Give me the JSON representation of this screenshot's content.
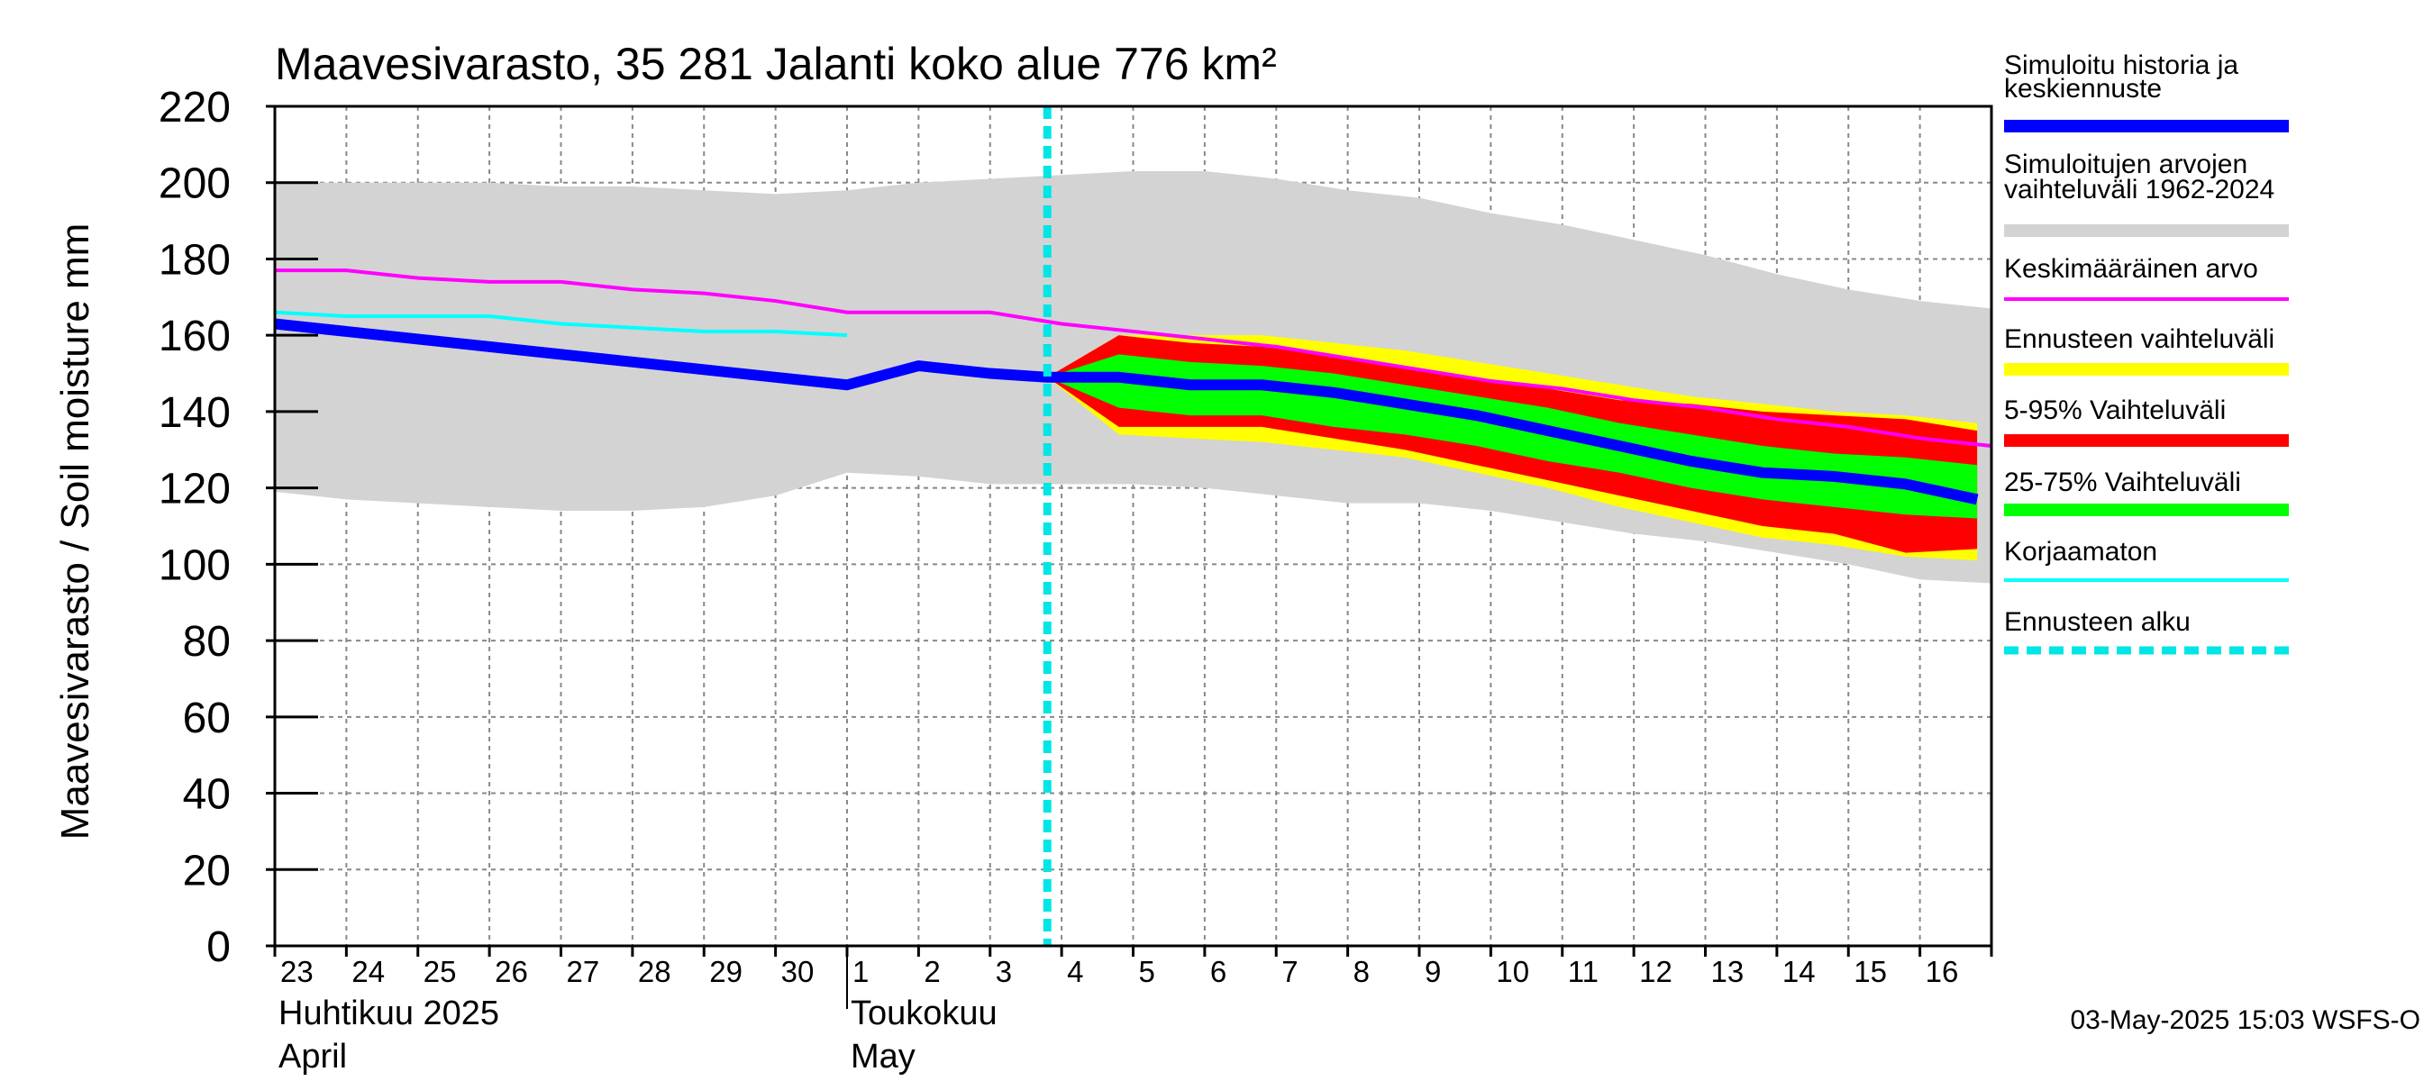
{
  "chart_data": {
    "type": "area",
    "title": "Maavesivarasto, 35 281 Jalanti koko alue 776 km²",
    "ylabel": "Maavesivarasto / Soil moisture   mm",
    "ylim": [
      0,
      220
    ],
    "yticks": [
      0,
      20,
      40,
      60,
      80,
      100,
      120,
      140,
      160,
      180,
      200,
      220
    ],
    "xlim": [
      0,
      24
    ],
    "grid": true,
    "x_tick_labels": [
      "23",
      "24",
      "25",
      "26",
      "27",
      "28",
      "29",
      "30",
      "1",
      "2",
      "3",
      "4",
      "5",
      "6",
      "7",
      "8",
      "9",
      "10",
      "11",
      "12",
      "13",
      "14",
      "15",
      "16"
    ],
    "months": [
      {
        "name": "Huhtikuu  2025",
        "name_en": "April",
        "day_index": 0
      },
      {
        "name": "Toukokuu",
        "name_en": "May",
        "day_index": 8
      }
    ],
    "month_boundary_day": 8,
    "forecast_start_day": 10.8,
    "colors": {
      "history_band": "#d3d3d3",
      "forecast_range": "#ffff00",
      "p5_95": "#ff0000",
      "p25_75": "#00ff00",
      "simulated": "#0000ff",
      "mean": "#ff00ff",
      "uncorrected": "#00ffff",
      "forecast_start": "#00e5e5"
    },
    "series": [
      {
        "key": "history_band",
        "name": "Simuloitujen arvojen vaihteluväli 1962-2024",
        "upper": [
          [
            0,
            200
          ],
          [
            1,
            200
          ],
          [
            2,
            200
          ],
          [
            3,
            200
          ],
          [
            4,
            199
          ],
          [
            5,
            199
          ],
          [
            6,
            198
          ],
          [
            7,
            197
          ],
          [
            8,
            198
          ],
          [
            9,
            200
          ],
          [
            10,
            201
          ],
          [
            11,
            202
          ],
          [
            12,
            203
          ],
          [
            13,
            203
          ],
          [
            14,
            201
          ],
          [
            15,
            198
          ],
          [
            16,
            196
          ],
          [
            17,
            192
          ],
          [
            18,
            189
          ],
          [
            19,
            185
          ],
          [
            20,
            181
          ],
          [
            21,
            176
          ],
          [
            22,
            172
          ],
          [
            23,
            169
          ],
          [
            24,
            167
          ]
        ],
        "lower": [
          [
            0,
            119
          ],
          [
            1,
            117
          ],
          [
            2,
            116
          ],
          [
            3,
            115
          ],
          [
            4,
            114
          ],
          [
            5,
            114
          ],
          [
            6,
            115
          ],
          [
            7,
            118
          ],
          [
            8,
            124
          ],
          [
            9,
            123
          ],
          [
            10,
            121
          ],
          [
            11,
            121
          ],
          [
            12,
            121
          ],
          [
            13,
            120
          ],
          [
            14,
            118
          ],
          [
            15,
            116
          ],
          [
            16,
            116
          ],
          [
            17,
            114
          ],
          [
            18,
            111
          ],
          [
            19,
            108
          ],
          [
            20,
            106
          ],
          [
            21,
            103
          ],
          [
            22,
            100
          ],
          [
            23,
            96
          ],
          [
            24,
            95
          ]
        ]
      },
      {
        "key": "forecast_range",
        "name": "Ennusteen vaihteluväli",
        "upper": [
          [
            10.8,
            149
          ],
          [
            11.8,
            160
          ],
          [
            12.8,
            160
          ],
          [
            13.8,
            160
          ],
          [
            14.8,
            158
          ],
          [
            15.8,
            156
          ],
          [
            16.8,
            153
          ],
          [
            17.8,
            150
          ],
          [
            18.8,
            147
          ],
          [
            19.8,
            144
          ],
          [
            20.8,
            142
          ],
          [
            21.8,
            140
          ],
          [
            22.8,
            139
          ],
          [
            23.8,
            137
          ]
        ],
        "lower": [
          [
            10.8,
            149
          ],
          [
            11.8,
            134
          ],
          [
            12.8,
            133
          ],
          [
            13.8,
            132
          ],
          [
            14.8,
            130
          ],
          [
            15.8,
            128
          ],
          [
            16.8,
            124
          ],
          [
            17.8,
            120
          ],
          [
            18.8,
            115
          ],
          [
            19.8,
            111
          ],
          [
            20.8,
            107
          ],
          [
            21.8,
            105
          ],
          [
            22.8,
            102
          ],
          [
            23.8,
            101
          ]
        ]
      },
      {
        "key": "p5_95",
        "name": "5-95% Vaihteluväli",
        "upper": [
          [
            10.8,
            149
          ],
          [
            11.8,
            160
          ],
          [
            12.8,
            158
          ],
          [
            13.8,
            157
          ],
          [
            14.8,
            155
          ],
          [
            15.8,
            152
          ],
          [
            16.8,
            149
          ],
          [
            17.8,
            146
          ],
          [
            18.8,
            143
          ],
          [
            19.8,
            142
          ],
          [
            20.8,
            140
          ],
          [
            21.8,
            139
          ],
          [
            22.8,
            138
          ],
          [
            23.8,
            135
          ]
        ],
        "lower": [
          [
            10.8,
            149
          ],
          [
            11.8,
            136
          ],
          [
            12.8,
            136
          ],
          [
            13.8,
            136
          ],
          [
            14.8,
            133
          ],
          [
            15.8,
            130
          ],
          [
            16.8,
            126
          ],
          [
            17.8,
            122
          ],
          [
            18.8,
            118
          ],
          [
            19.8,
            114
          ],
          [
            20.8,
            110
          ],
          [
            21.8,
            108
          ],
          [
            22.8,
            103
          ],
          [
            23.8,
            104
          ]
        ]
      },
      {
        "key": "p25_75",
        "name": "25-75% Vaihteluväli",
        "upper": [
          [
            10.8,
            149
          ],
          [
            11.8,
            155
          ],
          [
            12.8,
            153
          ],
          [
            13.8,
            152
          ],
          [
            14.8,
            150
          ],
          [
            15.8,
            147
          ],
          [
            16.8,
            144
          ],
          [
            17.8,
            141
          ],
          [
            18.8,
            137
          ],
          [
            19.8,
            134
          ],
          [
            20.8,
            131
          ],
          [
            21.8,
            129
          ],
          [
            22.8,
            128
          ],
          [
            23.8,
            126
          ]
        ],
        "lower": [
          [
            10.8,
            149
          ],
          [
            11.8,
            141
          ],
          [
            12.8,
            139
          ],
          [
            13.8,
            139
          ],
          [
            14.8,
            136
          ],
          [
            15.8,
            134
          ],
          [
            16.8,
            131
          ],
          [
            17.8,
            127
          ],
          [
            18.8,
            124
          ],
          [
            19.8,
            120
          ],
          [
            20.8,
            117
          ],
          [
            21.8,
            115
          ],
          [
            22.8,
            113
          ],
          [
            23.8,
            112
          ]
        ]
      },
      {
        "key": "mean",
        "name": "Keskimääräinen arvo",
        "points": [
          [
            0,
            177
          ],
          [
            1,
            177
          ],
          [
            2,
            175
          ],
          [
            3,
            174
          ],
          [
            4,
            174
          ],
          [
            5,
            172
          ],
          [
            6,
            171
          ],
          [
            7,
            169
          ],
          [
            8,
            166
          ],
          [
            9,
            166
          ],
          [
            10,
            166
          ],
          [
            11,
            163
          ],
          [
            12,
            161
          ],
          [
            13,
            159
          ],
          [
            14,
            157
          ],
          [
            15,
            154
          ],
          [
            16,
            151
          ],
          [
            17,
            148
          ],
          [
            18,
            146
          ],
          [
            19,
            143
          ],
          [
            20,
            141
          ],
          [
            21,
            138
          ],
          [
            22,
            136
          ],
          [
            23,
            133
          ],
          [
            24,
            131
          ]
        ]
      },
      {
        "key": "uncorrected",
        "name": "Korjaamaton",
        "points": [
          [
            0,
            166
          ],
          [
            1,
            165
          ],
          [
            2,
            165
          ],
          [
            3,
            165
          ],
          [
            4,
            163
          ],
          [
            5,
            162
          ],
          [
            6,
            161
          ],
          [
            7,
            161
          ],
          [
            8,
            160
          ]
        ]
      },
      {
        "key": "simulated",
        "name": "Simuloitu historia ja keskiennuste",
        "points": [
          [
            0,
            163
          ],
          [
            1,
            161
          ],
          [
            2,
            159
          ],
          [
            3,
            157
          ],
          [
            4,
            155
          ],
          [
            5,
            153
          ],
          [
            6,
            151
          ],
          [
            7,
            149
          ],
          [
            8,
            147
          ],
          [
            9,
            152
          ],
          [
            10,
            150
          ],
          [
            10.8,
            149
          ],
          [
            11.8,
            149
          ],
          [
            12.8,
            147
          ],
          [
            13.8,
            147
          ],
          [
            14.8,
            145
          ],
          [
            15.8,
            142
          ],
          [
            16.8,
            139
          ],
          [
            17.8,
            135
          ],
          [
            18.8,
            131
          ],
          [
            19.8,
            127
          ],
          [
            20.8,
            124
          ],
          [
            21.8,
            123
          ],
          [
            22.8,
            121
          ],
          [
            23.8,
            117
          ]
        ]
      }
    ]
  },
  "legend": [
    {
      "key": "simulated",
      "label_lines": [
        "Simuloitu historia ja",
        "keskiennuste"
      ],
      "color": "#0000ff",
      "style": "solid"
    },
    {
      "key": "history_band",
      "label_lines": [
        "Simuloitujen arvojen",
        "vaihteluväli 1962-2024"
      ],
      "color": "#d3d3d3",
      "style": "solid"
    },
    {
      "key": "mean",
      "label_lines": [
        "Keskimääräinen arvo"
      ],
      "color": "#ff00ff",
      "style": "thin"
    },
    {
      "key": "forecast_range",
      "label_lines": [
        "Ennusteen vaihteluväli"
      ],
      "color": "#ffff00",
      "style": "solid"
    },
    {
      "key": "p5_95",
      "label_lines": [
        "5-95% Vaihteluväli"
      ],
      "color": "#ff0000",
      "style": "solid"
    },
    {
      "key": "p25_75",
      "label_lines": [
        "25-75% Vaihteluväli"
      ],
      "color": "#00ff00",
      "style": "solid"
    },
    {
      "key": "uncorrected",
      "label_lines": [
        "Korjaamaton"
      ],
      "color": "#00ffff",
      "style": "thin"
    },
    {
      "key": "forecast_start",
      "label_lines": [
        "Ennusteen alku"
      ],
      "color": "#00e5e5",
      "style": "dashed"
    }
  ],
  "footer": "03-May-2025 15:03 WSFS-O"
}
